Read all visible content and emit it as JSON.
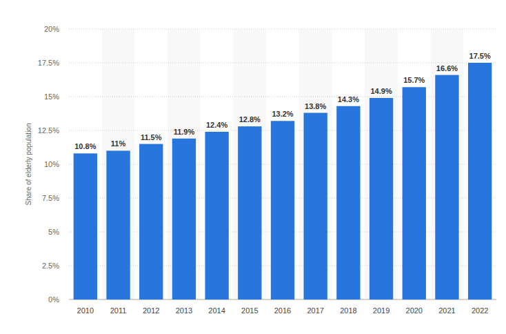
{
  "chart_data": {
    "type": "bar",
    "y_label": "Share of elderly population",
    "categories": [
      "2010",
      "2011",
      "2012",
      "2013",
      "2014",
      "2015",
      "2016",
      "2017",
      "2018",
      "2019",
      "2020",
      "2021",
      "2022"
    ],
    "values": [
      10.8,
      11,
      11.5,
      11.9,
      12.4,
      12.8,
      13.2,
      13.8,
      14.3,
      14.9,
      15.7,
      16.6,
      17.5
    ],
    "value_labels": [
      "10.8%",
      "11%",
      "11.5%",
      "11.9%",
      "12.4%",
      "12.8%",
      "13.2%",
      "13.8%",
      "14.3%",
      "14.9%",
      "15.7%",
      "16.6%",
      "17.5%"
    ],
    "color": "#2876dd",
    "ylim": [
      0,
      20
    ],
    "yticks": [
      {
        "value": 0,
        "label": "0%"
      },
      {
        "value": 2.5,
        "label": "2.5%"
      },
      {
        "value": 5,
        "label": "5%"
      },
      {
        "value": 7.5,
        "label": "7.5%"
      },
      {
        "value": 10,
        "label": "10%"
      },
      {
        "value": 12.5,
        "label": "12.5%"
      },
      {
        "value": 15,
        "label": "15%"
      },
      {
        "value": 17.5,
        "label": "17.5%"
      },
      {
        "value": 20,
        "label": "20%"
      }
    ],
    "grid": true,
    "data_labels": true
  }
}
